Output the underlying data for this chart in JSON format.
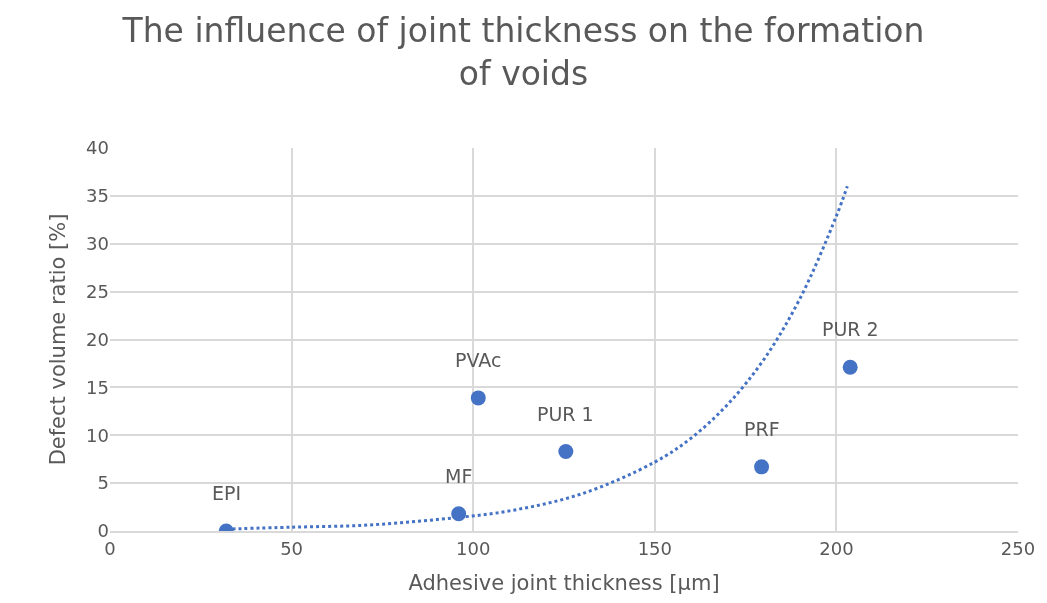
{
  "chart_data": {
    "type": "scatter",
    "title": "The influence of joint thickness on the formation of voids",
    "xlabel": "Adhesive joint thickness [µm]",
    "ylabel": "Defect volume ratio [%]",
    "series": [
      {
        "color": "#4472c4",
        "marker": "circle",
        "x": [
          32,
          96,
          101.4,
          125.5,
          179.4,
          203.8
        ],
        "values": [
          0,
          1.8,
          13.9,
          8.3,
          6.7,
          17.1
        ]
      },
      {
        "type": "line",
        "color": "#4472c4",
        "line_style": "dotted",
        "marker": "none",
        "x": [
          32,
          50,
          70,
          90,
          110,
          130,
          150,
          160,
          170,
          180,
          190,
          200,
          203
        ],
        "values": [
          0.2,
          0.4,
          0.6,
          1.2,
          2.1,
          3.9,
          7.2,
          9.7,
          13.2,
          17.9,
          24.3,
          32.9,
          36
        ]
      }
    ],
    "annotations": [
      {
        "text": "EPI",
        "x": 32,
        "y": 0
      },
      {
        "text": "MF",
        "x": 96,
        "y": 1.8
      },
      {
        "text": "PVAc",
        "x": 101.4,
        "y": 13.9
      },
      {
        "text": "PUR 1",
        "x": 125.5,
        "y": 8.3
      },
      {
        "text": "PRF",
        "x": 179.4,
        "y": 6.7
      },
      {
        "text": "PUR 2",
        "x": 203.8,
        "y": 17.1
      }
    ],
    "xlim": [
      0,
      250
    ],
    "xticks": [
      0,
      50,
      100,
      150,
      200,
      250
    ],
    "ylim": [
      0,
      40
    ],
    "yticks": [
      0,
      5,
      10,
      15,
      20,
      25,
      30,
      35,
      40
    ],
    "grid": true
  }
}
